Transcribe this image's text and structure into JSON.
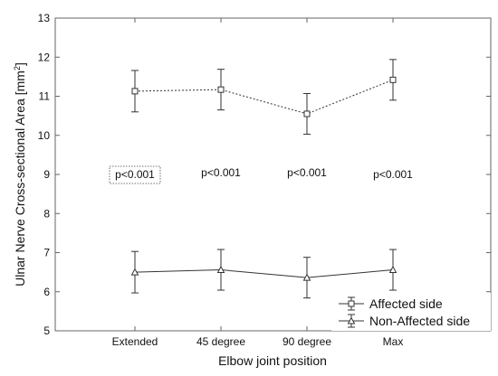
{
  "chart_data": {
    "type": "line",
    "xlabel": "Elbow joint position",
    "ylabel": "Ulnar Nerve Cross-sectional Area [mm²]",
    "categories": [
      "Extended",
      "45 degree",
      "90 degree",
      "Max"
    ],
    "ylim": [
      5,
      13
    ],
    "yticks": [
      5,
      6,
      7,
      8,
      9,
      10,
      11,
      12,
      13
    ],
    "grid": false,
    "legend_position": "bottom-right",
    "series": [
      {
        "name": "Affected side",
        "values": [
          11.13,
          11.17,
          10.55,
          11.42
        ],
        "lower": [
          10.6,
          10.65,
          10.03,
          10.9
        ],
        "upper": [
          11.66,
          11.69,
          11.07,
          11.94
        ],
        "marker": "square",
        "line_style": "dotted",
        "color": "#333333"
      },
      {
        "name": "Non-Affected side",
        "values": [
          6.5,
          6.56,
          6.36,
          6.56
        ],
        "lower": [
          5.97,
          6.04,
          5.84,
          6.04
        ],
        "upper": [
          7.03,
          7.08,
          6.88,
          7.08
        ],
        "marker": "triangle",
        "line_style": "solid",
        "color": "#333333"
      }
    ],
    "annotations": [
      {
        "text": "p<0.001",
        "category_index": 0,
        "y": 9.0,
        "boxed": true
      },
      {
        "text": "p<0.001",
        "category_index": 1,
        "y": 9.05,
        "boxed": false
      },
      {
        "text": "p<0.001",
        "category_index": 2,
        "y": 9.05,
        "boxed": false
      },
      {
        "text": "p<0.001",
        "category_index": 3,
        "y": 9.0,
        "boxed": false
      }
    ]
  }
}
